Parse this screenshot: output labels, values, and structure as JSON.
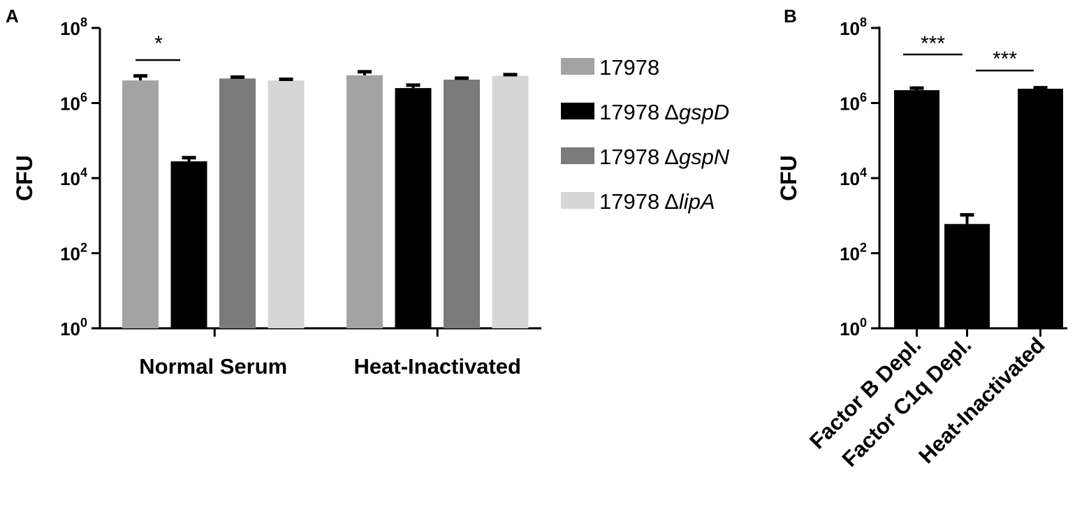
{
  "chart_data": [
    {
      "panel_label": "A",
      "type": "bar",
      "ylabel": "CFU",
      "yscale": "log",
      "ylim": [
        1,
        100000000
      ],
      "yticks": [
        {
          "value": 1,
          "base": "10",
          "exp": "0"
        },
        {
          "value": 100,
          "base": "10",
          "exp": "2"
        },
        {
          "value": 10000,
          "base": "10",
          "exp": "4"
        },
        {
          "value": 1000000,
          "base": "10",
          "exp": "6"
        },
        {
          "value": 100000000,
          "base": "10",
          "exp": "8"
        }
      ],
      "categories": [
        "Normal Serum",
        "Heat-Inactivated"
      ],
      "series": [
        {
          "name": "17978",
          "prefix": "17978 Δ",
          "gene": "",
          "color": "#a3a3a3",
          "values": [
            4000000,
            5500000
          ],
          "errors": [
            5300000,
            6800000
          ]
        },
        {
          "name": "17978 ΔgspD",
          "prefix": "17978 Δ",
          "gene": "gspD",
          "color": "#000000",
          "values": [
            28000,
            2500000
          ],
          "errors": [
            35000,
            3000000
          ]
        },
        {
          "name": "17978 ΔgspN",
          "prefix": "17978 Δ",
          "gene": "gspN",
          "color": "#7b7b7b",
          "values": [
            4500000,
            4200000
          ],
          "errors": [
            4900000,
            4600000
          ]
        },
        {
          "name": "17978 ΔlipA",
          "prefix": "17978 Δ",
          "gene": "lipA",
          "color": "#d6d6d6",
          "values": [
            4000000,
            5300000
          ],
          "errors": [
            4300000,
            5700000
          ]
        }
      ],
      "legend_placement": "right",
      "annotations": [
        {
          "text": "*",
          "between": [
            "Normal Serum / 17978",
            "Normal Serum / 17978 ΔgspD"
          ]
        }
      ]
    },
    {
      "panel_label": "B",
      "type": "bar",
      "ylabel": "CFU",
      "yscale": "log",
      "ylim": [
        1,
        100000000
      ],
      "yticks": [
        {
          "value": 1,
          "base": "10",
          "exp": "0"
        },
        {
          "value": 100,
          "base": "10",
          "exp": "2"
        },
        {
          "value": 10000,
          "base": "10",
          "exp": "4"
        },
        {
          "value": 1000000,
          "base": "10",
          "exp": "6"
        },
        {
          "value": 100000000,
          "base": "10",
          "exp": "8"
        }
      ],
      "categories": [
        "Factor B Depl.",
        "Factor C1q Depl.",
        "Heat-Inactivated"
      ],
      "values": [
        2200000,
        600,
        2400000
      ],
      "errors": [
        2500000,
        1050,
        2550000
      ],
      "color": "#000000",
      "annotations": [
        {
          "text": "***",
          "between": [
            "Factor B Depl.",
            "Factor C1q Depl."
          ]
        },
        {
          "text": "***",
          "between": [
            "Factor C1q Depl.",
            "Heat-Inactivated"
          ]
        }
      ]
    }
  ]
}
